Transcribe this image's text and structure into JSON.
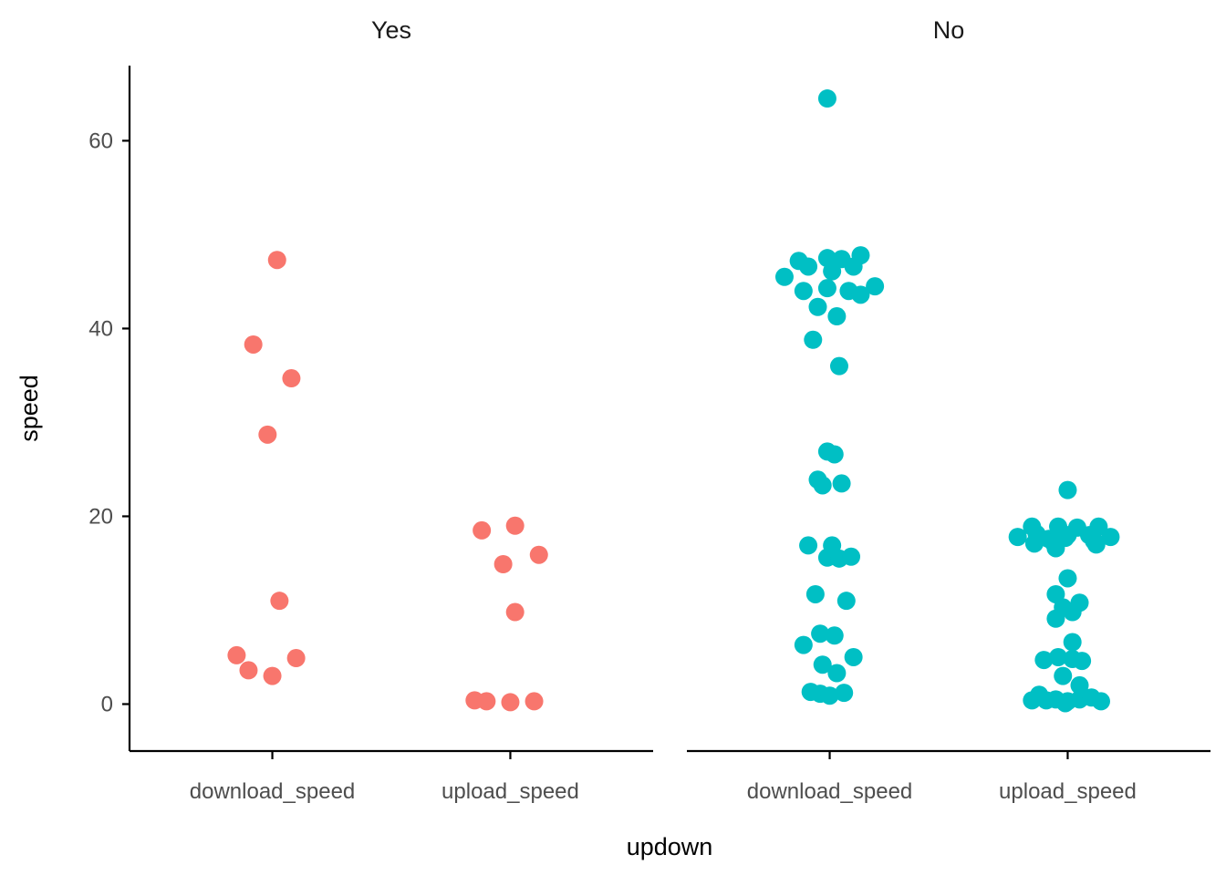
{
  "chart_data": {
    "type": "scatter",
    "xlabel": "updown",
    "ylabel": "speed",
    "ylim": [
      -5,
      68
    ],
    "yticks": [
      0,
      20,
      40,
      60
    ],
    "categories": [
      "download_speed",
      "upload_speed"
    ],
    "grid": false,
    "legend": "none",
    "panels": [
      {
        "label": "Yes",
        "color": "#F8766D",
        "series": [
          {
            "category": "download_speed",
            "points": [
              {
                "j": 0.02,
                "y": 47.3
              },
              {
                "j": -0.08,
                "y": 38.3
              },
              {
                "j": 0.08,
                "y": 34.7
              },
              {
                "j": -0.02,
                "y": 28.7
              },
              {
                "j": 0.03,
                "y": 11.0
              },
              {
                "j": -0.15,
                "y": 5.2
              },
              {
                "j": 0.1,
                "y": 4.9
              },
              {
                "j": -0.1,
                "y": 3.6
              },
              {
                "j": 0.0,
                "y": 3.0
              }
            ]
          },
          {
            "category": "upload_speed",
            "points": [
              {
                "j": 0.02,
                "y": 19.0
              },
              {
                "j": -0.12,
                "y": 18.5
              },
              {
                "j": 0.12,
                "y": 15.9
              },
              {
                "j": -0.03,
                "y": 14.9
              },
              {
                "j": 0.02,
                "y": 9.8
              },
              {
                "j": -0.15,
                "y": 0.4
              },
              {
                "j": -0.1,
                "y": 0.3
              },
              {
                "j": 0.0,
                "y": 0.2
              },
              {
                "j": 0.1,
                "y": 0.3
              }
            ]
          }
        ]
      },
      {
        "label": "No",
        "color": "#00BFC4",
        "series": [
          {
            "category": "download_speed",
            "points": [
              {
                "j": -0.01,
                "y": 64.5
              },
              {
                "j": 0.13,
                "y": 47.8
              },
              {
                "j": -0.01,
                "y": 47.5
              },
              {
                "j": 0.05,
                "y": 47.4
              },
              {
                "j": -0.13,
                "y": 47.2
              },
              {
                "j": -0.09,
                "y": 46.6
              },
              {
                "j": 0.1,
                "y": 46.6
              },
              {
                "j": 0.01,
                "y": 46.1
              },
              {
                "j": -0.19,
                "y": 45.5
              },
              {
                "j": 0.19,
                "y": 44.5
              },
              {
                "j": -0.01,
                "y": 44.3
              },
              {
                "j": -0.11,
                "y": 44.0
              },
              {
                "j": 0.08,
                "y": 44.0
              },
              {
                "j": 0.13,
                "y": 43.6
              },
              {
                "j": -0.05,
                "y": 42.3
              },
              {
                "j": 0.03,
                "y": 41.3
              },
              {
                "j": -0.07,
                "y": 38.8
              },
              {
                "j": 0.04,
                "y": 36.0
              },
              {
                "j": -0.01,
                "y": 26.9
              },
              {
                "j": 0.02,
                "y": 26.6
              },
              {
                "j": -0.05,
                "y": 23.9
              },
              {
                "j": -0.03,
                "y": 23.3
              },
              {
                "j": 0.05,
                "y": 23.5
              },
              {
                "j": -0.09,
                "y": 16.9
              },
              {
                "j": 0.01,
                "y": 16.9
              },
              {
                "j": -0.01,
                "y": 15.6
              },
              {
                "j": 0.04,
                "y": 15.5
              },
              {
                "j": 0.09,
                "y": 15.7
              },
              {
                "j": -0.06,
                "y": 11.7
              },
              {
                "j": 0.07,
                "y": 11.0
              },
              {
                "j": -0.04,
                "y": 7.5
              },
              {
                "j": 0.02,
                "y": 7.3
              },
              {
                "j": -0.11,
                "y": 6.3
              },
              {
                "j": 0.1,
                "y": 5.0
              },
              {
                "j": -0.03,
                "y": 4.2
              },
              {
                "j": 0.03,
                "y": 3.3
              },
              {
                "j": -0.08,
                "y": 1.3
              },
              {
                "j": -0.04,
                "y": 1.1
              },
              {
                "j": 0.0,
                "y": 0.9
              },
              {
                "j": 0.06,
                "y": 1.2
              }
            ]
          },
          {
            "category": "upload_speed",
            "points": [
              {
                "j": 0.0,
                "y": 22.8
              },
              {
                "j": -0.15,
                "y": 18.9
              },
              {
                "j": -0.04,
                "y": 18.9
              },
              {
                "j": 0.04,
                "y": 18.8
              },
              {
                "j": 0.13,
                "y": 18.9
              },
              {
                "j": -0.13,
                "y": 18.1
              },
              {
                "j": 0.0,
                "y": 18.0
              },
              {
                "j": 0.09,
                "y": 18.0
              },
              {
                "j": -0.21,
                "y": 17.8
              },
              {
                "j": -0.08,
                "y": 17.6
              },
              {
                "j": 0.18,
                "y": 17.8
              },
              {
                "j": -0.01,
                "y": 17.7
              },
              {
                "j": -0.06,
                "y": 17.2
              },
              {
                "j": 0.11,
                "y": 17.4
              },
              {
                "j": -0.14,
                "y": 17.1
              },
              {
                "j": 0.12,
                "y": 17.0
              },
              {
                "j": -0.05,
                "y": 16.6
              },
              {
                "j": 0.0,
                "y": 13.4
              },
              {
                "j": -0.05,
                "y": 11.7
              },
              {
                "j": 0.05,
                "y": 10.8
              },
              {
                "j": -0.02,
                "y": 10.3
              },
              {
                "j": 0.02,
                "y": 9.8
              },
              {
                "j": -0.05,
                "y": 9.1
              },
              {
                "j": 0.02,
                "y": 6.6
              },
              {
                "j": -0.1,
                "y": 4.7
              },
              {
                "j": -0.04,
                "y": 5.0
              },
              {
                "j": 0.02,
                "y": 4.8
              },
              {
                "j": 0.06,
                "y": 4.6
              },
              {
                "j": -0.02,
                "y": 3.0
              },
              {
                "j": 0.05,
                "y": 2.0
              },
              {
                "j": -0.15,
                "y": 0.4
              },
              {
                "j": -0.12,
                "y": 1.0
              },
              {
                "j": -0.09,
                "y": 0.4
              },
              {
                "j": -0.05,
                "y": 0.5
              },
              {
                "j": -0.01,
                "y": 0.1
              },
              {
                "j": 0.05,
                "y": 0.5
              },
              {
                "j": 0.1,
                "y": 0.7
              },
              {
                "j": 0.14,
                "y": 0.3
              },
              {
                "j": 0.0,
                "y": 0.3
              }
            ]
          }
        ]
      }
    ]
  }
}
